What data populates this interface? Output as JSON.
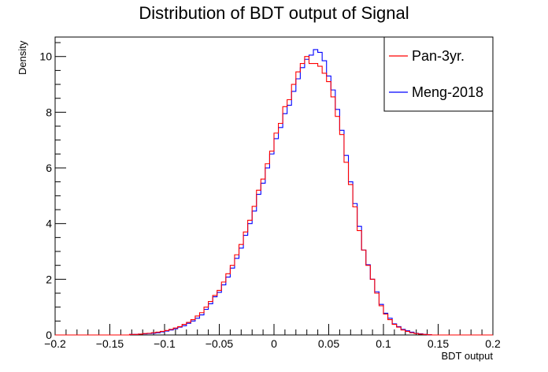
{
  "chart_data": {
    "type": "histogram",
    "title": "Distribution of BDT output of Signal",
    "xlabel": "BDT output",
    "ylabel": "Density",
    "xlim": [
      -0.2,
      0.2
    ],
    "ylim": [
      0,
      10.7
    ],
    "xticks": [
      -0.2,
      -0.15,
      -0.1,
      -0.05,
      0,
      0.05,
      0.1,
      0.15,
      0.2
    ],
    "xtick_labels": [
      "−0.2",
      "−0.15",
      "−0.1",
      "−0.05",
      "0",
      "0.05",
      "0.1",
      "0.15",
      "0.2"
    ],
    "yticks": [
      0,
      2,
      4,
      6,
      8,
      10
    ],
    "ytick_labels": [
      "0",
      "2",
      "4",
      "6",
      "8",
      "10"
    ],
    "bin_width": 0.004,
    "bin_start": -0.2,
    "legend_position": "top-right",
    "grid": false,
    "series": [
      {
        "name": "Meng-2018",
        "color": "#0000ff",
        "values": [
          0,
          0,
          0,
          0,
          0,
          0,
          0,
          0,
          0,
          0,
          0,
          0,
          0,
          0,
          0,
          0,
          0,
          0.02,
          0.02,
          0.03,
          0.04,
          0.05,
          0.06,
          0.08,
          0.11,
          0.14,
          0.18,
          0.22,
          0.28,
          0.33,
          0.42,
          0.5,
          0.6,
          0.72,
          0.92,
          1.12,
          1.37,
          1.53,
          1.8,
          2.08,
          2.4,
          2.75,
          3.12,
          3.58,
          4.0,
          4.45,
          5.05,
          5.45,
          6.0,
          6.5,
          7.05,
          7.45,
          7.95,
          8.25,
          8.75,
          9.2,
          9.6,
          9.9,
          10.05,
          10.25,
          10.15,
          9.85,
          9.3,
          8.8,
          8.1,
          7.35,
          6.45,
          5.5,
          4.72,
          3.9,
          3.05,
          2.52,
          2.0,
          1.55,
          1.1,
          0.78,
          0.6,
          0.4,
          0.3,
          0.2,
          0.15,
          0.1,
          0.06,
          0.04,
          0.02,
          0.01,
          0,
          0,
          0,
          0,
          0,
          0,
          0,
          0,
          0,
          0,
          0,
          0,
          0,
          0
        ]
      },
      {
        "name": "Pan-3yr.",
        "color": "#ff0000",
        "values": [
          0,
          0,
          0,
          0,
          0,
          0,
          0,
          0,
          0,
          0,
          0,
          0,
          0,
          0,
          0,
          0,
          0,
          0.02,
          0.02,
          0.03,
          0.05,
          0.06,
          0.08,
          0.1,
          0.13,
          0.16,
          0.2,
          0.25,
          0.3,
          0.38,
          0.45,
          0.55,
          0.68,
          0.8,
          1.0,
          1.2,
          1.42,
          1.6,
          1.9,
          2.2,
          2.5,
          2.88,
          3.25,
          3.7,
          4.12,
          4.62,
          5.2,
          5.6,
          6.15,
          6.6,
          7.25,
          7.6,
          8.2,
          8.45,
          9.0,
          9.45,
          9.75,
          10.0,
          9.75,
          9.75,
          9.65,
          9.4,
          9.1,
          8.55,
          7.85,
          7.2,
          6.2,
          5.4,
          4.6,
          3.75,
          3.05,
          2.5,
          2.0,
          1.5,
          1.05,
          0.75,
          0.55,
          0.38,
          0.28,
          0.18,
          0.13,
          0.08,
          0.05,
          0.03,
          0.02,
          0.01,
          0,
          0,
          0,
          0,
          0,
          0,
          0,
          0,
          0,
          0,
          0,
          0,
          0,
          0
        ]
      }
    ]
  }
}
